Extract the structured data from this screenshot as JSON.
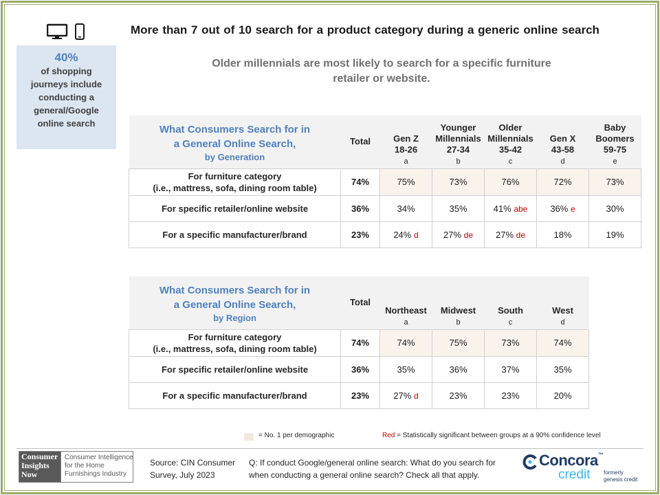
{
  "header": {
    "title": "More than 7 out of 10 search for a product category during a generic online search",
    "subtitle_line1": "Older millennials are most likely to search for a specific furniture",
    "subtitle_line2": "retailer or website."
  },
  "device_icons": [
    "desktop-icon",
    "mobile-phone-icon"
  ],
  "stat_box": {
    "percent": "40%",
    "lines": [
      "of shopping",
      "journeys include",
      "conducting a",
      "general/Google",
      "online search"
    ]
  },
  "generation_table": {
    "title_line1": "What Consumers Search for in",
    "title_line2": "a General Online Search,",
    "title_by": "by Generation",
    "total_header": "Total",
    "columns": [
      {
        "lines": [
          "Gen Z",
          "18-26"
        ],
        "letter": "a"
      },
      {
        "lines": [
          "Younger",
          "Millennials",
          "27-34"
        ],
        "letter": "b"
      },
      {
        "lines": [
          "Older",
          "Millennials",
          "35-42"
        ],
        "letter": "c"
      },
      {
        "lines": [
          "Gen X",
          "43-58"
        ],
        "letter": "d"
      },
      {
        "lines": [
          "Baby",
          "Boomers",
          "59-75"
        ],
        "letter": "e"
      }
    ],
    "rows": [
      {
        "label_line1": "For furniture category",
        "label_line2": "(i.e., mattress, sofa, dining room table)",
        "total": "74%",
        "highlight": true,
        "cells": [
          {
            "value": "75%",
            "sig": ""
          },
          {
            "value": "73%",
            "sig": ""
          },
          {
            "value": "76%",
            "sig": ""
          },
          {
            "value": "72%",
            "sig": ""
          },
          {
            "value": "73%",
            "sig": ""
          }
        ]
      },
      {
        "label_line1": "For specific retailer/online website",
        "label_line2": "",
        "total": "36%",
        "highlight": false,
        "cells": [
          {
            "value": "34%",
            "sig": ""
          },
          {
            "value": "35%",
            "sig": ""
          },
          {
            "value": "41%",
            "sig": "abe"
          },
          {
            "value": "36%",
            "sig": "e"
          },
          {
            "value": "30%",
            "sig": ""
          }
        ]
      },
      {
        "label_line1": "For a specific manufacturer/brand",
        "label_line2": "",
        "total": "23%",
        "highlight": false,
        "cells": [
          {
            "value": "24%",
            "sig": "d"
          },
          {
            "value": "27%",
            "sig": "de"
          },
          {
            "value": "27%",
            "sig": "de"
          },
          {
            "value": "18%",
            "sig": ""
          },
          {
            "value": "19%",
            "sig": ""
          }
        ]
      }
    ]
  },
  "region_table": {
    "title_line1": "What Consumers Search for in",
    "title_line2": "a General Online Search,",
    "title_by": "by Region",
    "total_header": "Total",
    "columns": [
      {
        "lines": [
          "Northeast"
        ],
        "letter": "a"
      },
      {
        "lines": [
          "Midwest"
        ],
        "letter": "b"
      },
      {
        "lines": [
          "South"
        ],
        "letter": "c"
      },
      {
        "lines": [
          "West"
        ],
        "letter": "d"
      }
    ],
    "rows": [
      {
        "label_line1": "For furniture category",
        "label_line2": "(i.e., mattress, sofa, dining room table)",
        "total": "74%",
        "highlight": true,
        "cells": [
          {
            "value": "74%",
            "sig": ""
          },
          {
            "value": "75%",
            "sig": ""
          },
          {
            "value": "73%",
            "sig": ""
          },
          {
            "value": "74%",
            "sig": ""
          }
        ]
      },
      {
        "label_line1": "For specific retailer/online website",
        "label_line2": "",
        "total": "36%",
        "highlight": false,
        "cells": [
          {
            "value": "35%",
            "sig": ""
          },
          {
            "value": "36%",
            "sig": ""
          },
          {
            "value": "37%",
            "sig": ""
          },
          {
            "value": "35%",
            "sig": ""
          }
        ]
      },
      {
        "label_line1": "For a specific manufacturer/brand",
        "label_line2": "",
        "total": "23%",
        "highlight": false,
        "cells": [
          {
            "value": "27%",
            "sig": "d"
          },
          {
            "value": "23%",
            "sig": ""
          },
          {
            "value": "23%",
            "sig": ""
          },
          {
            "value": "20%",
            "sig": ""
          }
        ]
      }
    ]
  },
  "legend": {
    "highlight_label": "= No. 1 per demographic",
    "red_word": "Red",
    "red_label": " = Statistically significant between groups at a 90% confidence level"
  },
  "footer": {
    "cin_logo_lines": [
      "Consumer",
      "Insights",
      "Now"
    ],
    "cin_tagline": "Consumer Intelligence for the Home Furnishings Industry",
    "source": "Source: CIN Consumer Survey, July 2023",
    "question": "Q: If conduct Google/general online search: What do you search for when conducting a general online search? Check all that apply.",
    "concora_name": "Concora",
    "concora_tm": "™",
    "concora_credit": "credit",
    "concora_formerly": [
      "formerly",
      "genesis credit"
    ]
  },
  "colors": {
    "frame": "#9bab6a",
    "accent_blue": "#4f81bd",
    "stat_box_bg": "#dce6f1",
    "highlight_cell": "#f9f3ec",
    "significance_red": "#c00000",
    "concora_navy": "#1f3b63",
    "concora_cyan": "#3cb4e5"
  }
}
